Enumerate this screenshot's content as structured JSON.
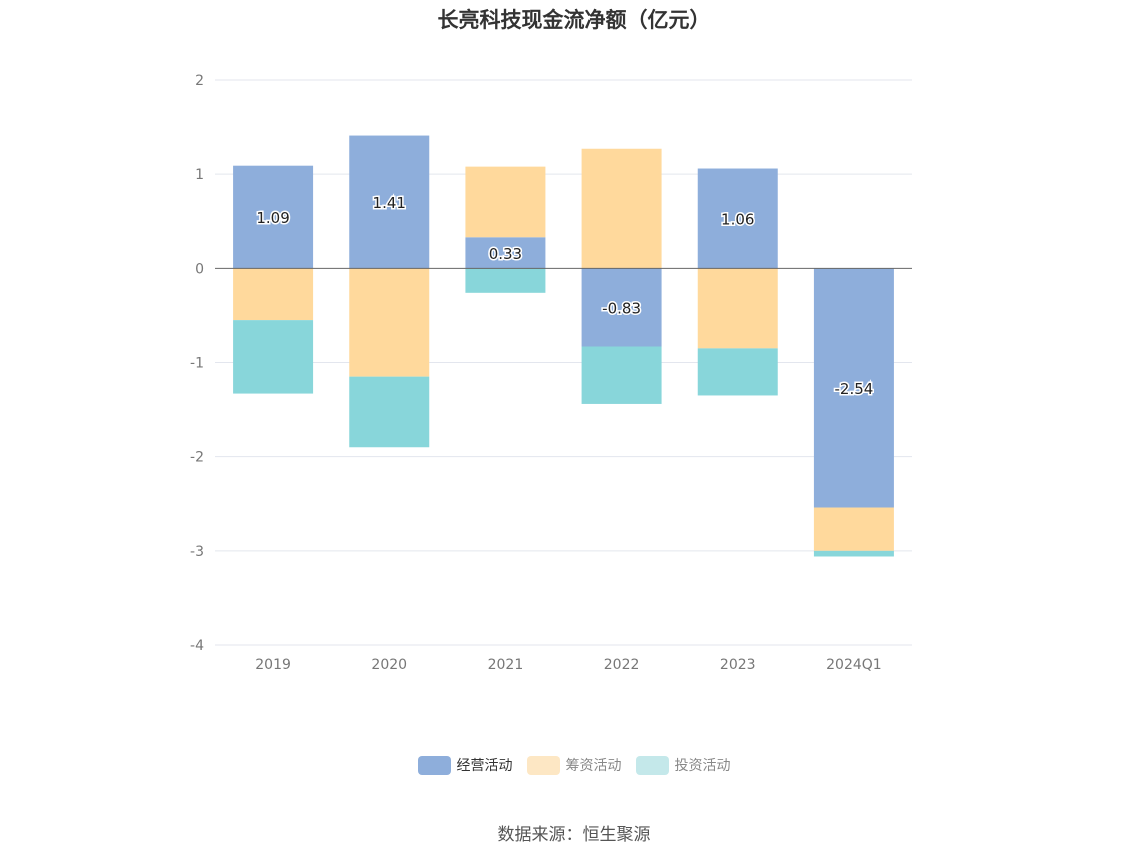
{
  "chart_data": {
    "type": "bar",
    "stacked": true,
    "title": "长亮科技现金流净额（亿元）",
    "categories": [
      "2019",
      "2020",
      "2021",
      "2022",
      "2023",
      "2024Q1"
    ],
    "series": [
      {
        "name": "经营活动",
        "color": "#8eaedb",
        "values": [
          1.09,
          1.41,
          0.33,
          -0.83,
          1.06,
          -2.54
        ]
      },
      {
        "name": "筹资活动",
        "color": "#ffd99c",
        "values": [
          -0.55,
          -1.15,
          0.75,
          1.27,
          -0.85,
          -0.46
        ]
      },
      {
        "name": "投资活动",
        "color": "#88d6da",
        "values": [
          -0.78,
          -0.75,
          -0.26,
          -0.61,
          -0.5,
          -0.06
        ]
      }
    ],
    "data_labels": [
      "1.09",
      "1.41",
      "0.33",
      "-0.83",
      "1.06",
      "-2.54"
    ],
    "ylim": [
      -4,
      2
    ],
    "yticks": [
      2,
      1,
      0,
      -1,
      -2,
      -3,
      -4
    ],
    "xlabel": "",
    "ylabel": "",
    "grid": true,
    "legend_position": "bottom"
  },
  "legend": {
    "items": [
      {
        "label": "经营活动",
        "color": "#8eaedb"
      },
      {
        "label": "筹资活动",
        "color": "#fde7c4"
      },
      {
        "label": "投资活动",
        "color": "#c4e8ea"
      }
    ]
  },
  "source": "数据来源：恒生聚源"
}
